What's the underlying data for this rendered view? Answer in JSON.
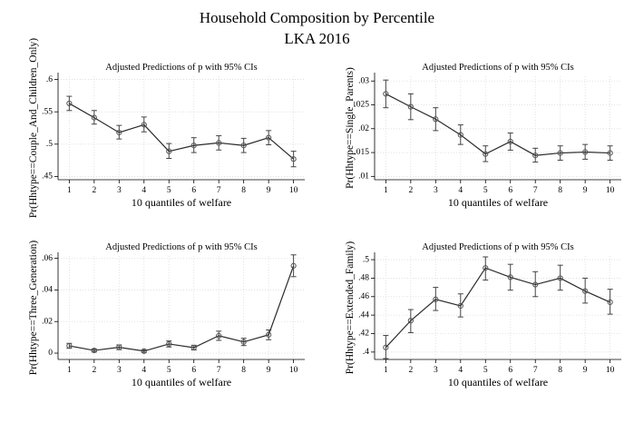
{
  "page": {
    "title": "Household Composition by Percentile",
    "subtitle": "LKA 2016"
  },
  "style": {
    "line_color": "#2b2b2b",
    "marker_color": "#555555",
    "grid_color": "#dcdcdc",
    "ci_color": "#444444"
  },
  "chart_data": [
    {
      "type": "line",
      "title": "Adjusted Predictions of p with 95% CIs",
      "xlabel": "10 quantiles of welfare",
      "ylabel": "Pr(Hhtype==Couple_And_Children_Only)",
      "x": [
        1,
        2,
        3,
        4,
        5,
        6,
        7,
        8,
        9,
        10
      ],
      "y": [
        0.563,
        0.541,
        0.518,
        0.53,
        0.489,
        0.498,
        0.502,
        0.498,
        0.51,
        0.477
      ],
      "ci_low": [
        0.552,
        0.531,
        0.508,
        0.519,
        0.478,
        0.487,
        0.491,
        0.487,
        0.499,
        0.465
      ],
      "ci_high": [
        0.574,
        0.552,
        0.529,
        0.542,
        0.501,
        0.51,
        0.513,
        0.509,
        0.521,
        0.489
      ],
      "ylim": [
        0.445,
        0.605
      ],
      "yticks": [
        ".45",
        ".5",
        ".55",
        ".6"
      ],
      "ytick_values": [
        0.45,
        0.5,
        0.55,
        0.6
      ],
      "xticks": [
        "1",
        "2",
        "3",
        "4",
        "5",
        "6",
        "7",
        "8",
        "9",
        "10"
      ],
      "grid": true
    },
    {
      "type": "line",
      "title": "Adjusted Predictions of p with 95% CIs",
      "xlabel": "10 quantiles of welfare",
      "ylabel": "Pr(Hhtype==Single_Parents)",
      "x": [
        1,
        2,
        3,
        4,
        5,
        6,
        7,
        8,
        9,
        10
      ],
      "y": [
        0.0273,
        0.0246,
        0.022,
        0.0187,
        0.0147,
        0.0173,
        0.0144,
        0.0149,
        0.0151,
        0.0149
      ],
      "ci_low": [
        0.0244,
        0.0219,
        0.0196,
        0.0167,
        0.0131,
        0.0155,
        0.013,
        0.0134,
        0.0136,
        0.0134
      ],
      "ci_high": [
        0.0302,
        0.0273,
        0.0244,
        0.0208,
        0.0164,
        0.0191,
        0.0159,
        0.0164,
        0.0167,
        0.0164
      ],
      "ylim": [
        0.0093,
        0.031
      ],
      "yticks": [
        ".01",
        ".015",
        ".02",
        ".025",
        ".03"
      ],
      "ytick_values": [
        0.01,
        0.015,
        0.02,
        0.025,
        0.03
      ],
      "xticks": [
        "1",
        "2",
        "3",
        "4",
        "5",
        "6",
        "7",
        "8",
        "9",
        "10"
      ],
      "grid": true
    },
    {
      "type": "line",
      "title": "Adjusted Predictions of p with 95% CIs",
      "xlabel": "10 quantiles of welfare",
      "ylabel": "Pr(Hhtype==Three_Generation)",
      "x": [
        1,
        2,
        3,
        4,
        5,
        6,
        7,
        8,
        9,
        10
      ],
      "y": [
        0.0046,
        0.0017,
        0.0037,
        0.0013,
        0.0058,
        0.0035,
        0.011,
        0.0071,
        0.0116,
        0.0553
      ],
      "ci_low": [
        0.0031,
        0.0008,
        0.0022,
        0.0004,
        0.0039,
        0.002,
        0.0081,
        0.0048,
        0.0085,
        0.0484
      ],
      "ci_high": [
        0.0062,
        0.0027,
        0.0052,
        0.0022,
        0.0077,
        0.005,
        0.0139,
        0.0094,
        0.0147,
        0.0622
      ],
      "ylim": [
        -0.004,
        0.0615
      ],
      "yticks": [
        "0",
        ".02",
        ".04",
        ".06"
      ],
      "ytick_values": [
        0,
        0.02,
        0.04,
        0.06
      ],
      "xticks": [
        "1",
        "2",
        "3",
        "4",
        "5",
        "6",
        "7",
        "8",
        "9",
        "10"
      ],
      "grid": true
    },
    {
      "type": "line",
      "title": "Adjusted Predictions of p with 95% CIs",
      "xlabel": "10 quantiles of welfare",
      "ylabel": "Pr(Hhtype==Extended_Family)",
      "x": [
        1,
        2,
        3,
        4,
        5,
        6,
        7,
        8,
        9,
        10
      ],
      "y": [
        0.405,
        0.434,
        0.457,
        0.45,
        0.491,
        0.481,
        0.473,
        0.48,
        0.466,
        0.454
      ],
      "ci_low": [
        0.393,
        0.421,
        0.445,
        0.438,
        0.478,
        0.467,
        0.46,
        0.467,
        0.453,
        0.441
      ],
      "ci_high": [
        0.418,
        0.446,
        0.47,
        0.463,
        0.503,
        0.495,
        0.487,
        0.494,
        0.48,
        0.468
      ],
      "ylim": [
        0.392,
        0.504
      ],
      "yticks": [
        ".4",
        ".42",
        ".44",
        ".46",
        ".48",
        ".5"
      ],
      "ytick_values": [
        0.4,
        0.42,
        0.44,
        0.46,
        0.48,
        0.5
      ],
      "xticks": [
        "1",
        "2",
        "3",
        "4",
        "5",
        "6",
        "7",
        "8",
        "9",
        "10"
      ],
      "grid": true
    }
  ]
}
